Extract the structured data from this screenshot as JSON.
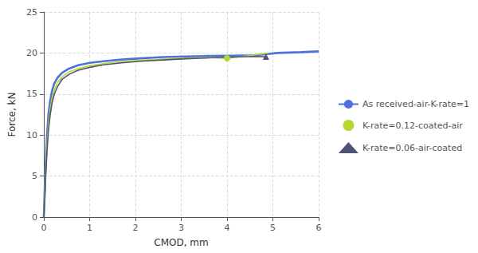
{
  "chart_data": {
    "type": "line",
    "xlabel": "CMOD, mm",
    "ylabel": "Force, kN",
    "xlim": [
      0,
      6
    ],
    "ylim": [
      0,
      25
    ],
    "xticks": [
      0,
      1,
      2,
      3,
      4,
      5,
      6
    ],
    "yticks": [
      0,
      5,
      10,
      15,
      20,
      25
    ],
    "grid": true,
    "legend": "right",
    "series": [
      {
        "name": "As received-air-K-rate=1",
        "x": [
          0.0,
          0.02,
          0.04,
          0.07,
          0.1,
          0.14,
          0.18,
          0.23,
          0.3,
          0.4,
          0.55,
          0.75,
          1.0,
          1.3,
          1.7,
          2.1,
          2.6,
          3.1,
          3.6,
          4.1,
          4.6,
          5.1,
          5.6,
          6.0
        ],
        "values": [
          0.0,
          3.5,
          6.5,
          10.0,
          12.5,
          14.2,
          15.4,
          16.3,
          17.0,
          17.6,
          18.1,
          18.5,
          18.8,
          19.0,
          19.2,
          19.35,
          19.5,
          19.58,
          19.64,
          19.68,
          19.72,
          20.0,
          20.1,
          20.2
        ]
      },
      {
        "name": "K-rate=0.12-coated-air",
        "marker": "circle",
        "marker_x": 4.0,
        "marker_y": 19.35,
        "x": [
          0.0,
          0.02,
          0.04,
          0.07,
          0.1,
          0.14,
          0.18,
          0.23,
          0.3,
          0.4,
          0.55,
          0.75,
          1.0,
          1.3,
          1.7,
          2.1,
          2.6,
          3.1,
          3.6,
          4.0,
          4.5,
          4.9
        ],
        "values": [
          0.0,
          2.8,
          5.5,
          8.8,
          11.3,
          13.2,
          14.5,
          15.5,
          16.4,
          17.1,
          17.7,
          18.1,
          18.45,
          18.7,
          18.95,
          19.1,
          19.25,
          19.38,
          19.45,
          19.35,
          19.7,
          20.0
        ]
      },
      {
        "name": "K-rate=0.06-air-coated",
        "marker": "triangle",
        "marker_x": 4.85,
        "marker_y": 19.55,
        "x": [
          0.0,
          0.02,
          0.04,
          0.07,
          0.1,
          0.14,
          0.18,
          0.23,
          0.3,
          0.4,
          0.55,
          0.75,
          1.0,
          1.3,
          1.7,
          2.1,
          2.6,
          3.1,
          3.6,
          4.1,
          4.6,
          4.85
        ],
        "values": [
          0.0,
          2.2,
          4.8,
          8.0,
          10.5,
          12.5,
          13.9,
          15.0,
          15.9,
          16.8,
          17.4,
          17.9,
          18.25,
          18.55,
          18.8,
          19.0,
          19.15,
          19.3,
          19.4,
          19.5,
          19.58,
          19.55
        ]
      }
    ]
  }
}
